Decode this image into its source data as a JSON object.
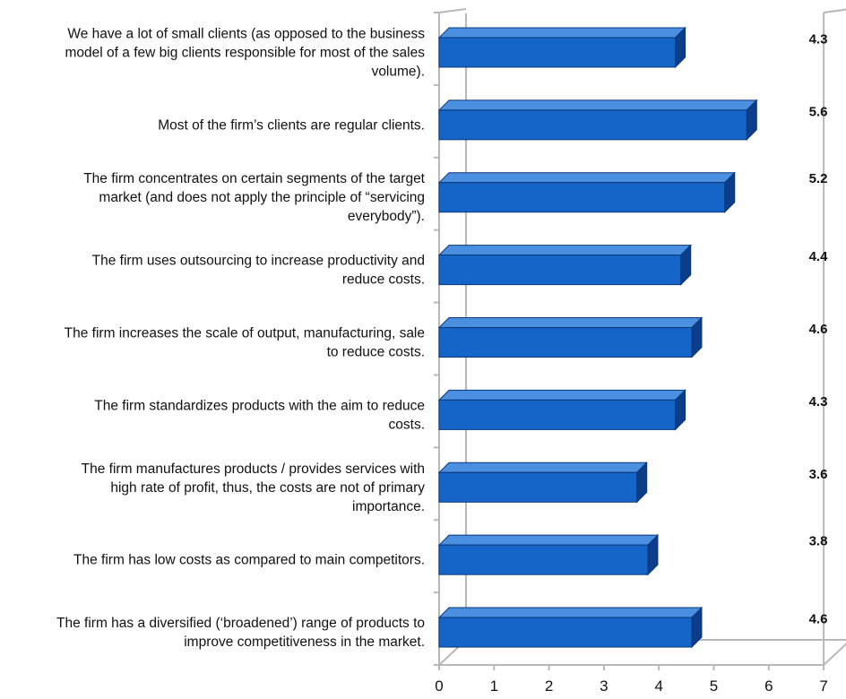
{
  "chart_data": {
    "type": "bar",
    "orientation": "horizontal",
    "categories": [
      [
        "We have a lot of small clients (as opposed to the business",
        "model of a few big clients responsible for most of the sales",
        "volume)."
      ],
      [
        "Most of the firm’s clients are regular clients."
      ],
      [
        "The firm concentrates on certain segments of the target",
        "market (and does not apply the principle of “servicing",
        "everybody”)."
      ],
      [
        "The firm uses outsourcing to increase productivity and",
        "reduce costs."
      ],
      [
        "The firm increases the scale of output, manufacturing, sale",
        "to reduce costs."
      ],
      [
        "The firm standardizes products with the aim to reduce",
        "costs."
      ],
      [
        "The firm manufactures products / provides services with",
        "high rate of profit, thus, the costs are not of primary",
        "importance."
      ],
      [
        "The firm has low costs as compared to main competitors."
      ],
      [
        "The firm has a diversified (‘broadened’) range of products to",
        "improve competitiveness in the market."
      ]
    ],
    "values": [
      4.3,
      5.6,
      5.2,
      4.4,
      4.6,
      4.3,
      3.6,
      3.8,
      4.6
    ],
    "value_labels": [
      "4.3",
      "5.6",
      "5.2",
      "4.4",
      "4.6",
      "4.3",
      "3.6",
      "3.8",
      "4.6"
    ],
    "xlim": [
      0,
      7
    ],
    "xticks": [
      "0",
      "1",
      "2",
      "3",
      "4",
      "5",
      "6",
      "7"
    ],
    "grid": false,
    "style": "3d",
    "colors": {
      "bar_front": "#1565c8",
      "bar_top": "#4a8fe0",
      "bar_side": "#0b3d8a",
      "bar_edge": "#0a3778",
      "axis": "#b8b8b8"
    }
  }
}
